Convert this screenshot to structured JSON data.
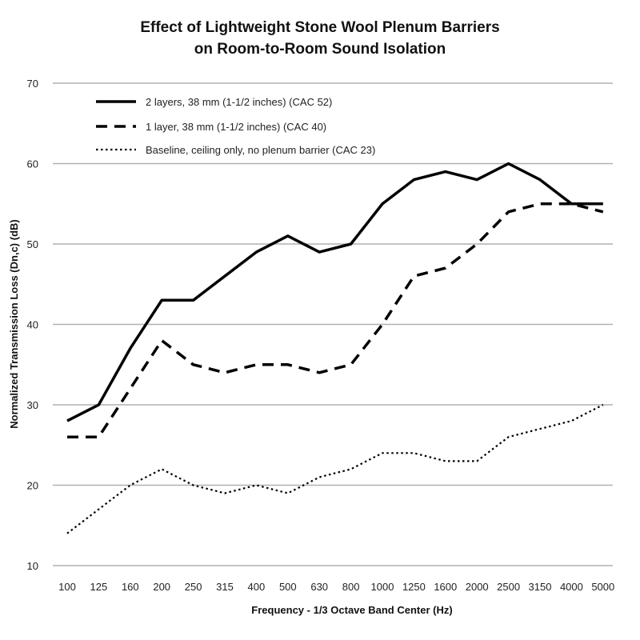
{
  "chart_data": {
    "type": "line",
    "title_line1": "Effect of Lightweight Stone Wool Plenum Barriers",
    "title_line2": "on Room-to-Room Sound Isolation",
    "xlabel": "Frequency - 1/3 Octave Band Center (Hz)",
    "ylabel": "Normalized Transmission Loss (Dn,c) (dB)",
    "ylim": [
      10,
      70
    ],
    "yticks": [
      "10",
      "20",
      "30",
      "40",
      "50",
      "60",
      "70"
    ],
    "grid": "horizontal",
    "legend_position": "top-left",
    "categories": [
      "100",
      "125",
      "160",
      "200",
      "250",
      "315",
      "400",
      "500",
      "630",
      "800",
      "1000",
      "1250",
      "1600",
      "2000",
      "2500",
      "3150",
      "4000",
      "5000"
    ],
    "series": [
      {
        "name": "2 layers, 38 mm (1-1/2 inches) (CAC 52)",
        "style": "solid",
        "values": [
          28,
          30,
          37,
          43,
          43,
          46,
          49,
          51,
          49,
          50,
          55,
          58,
          59,
          58,
          60,
          58,
          55,
          55
        ]
      },
      {
        "name": "1 layer, 38 mm (1-1/2 inches) (CAC 40)",
        "style": "dashed",
        "values": [
          26,
          26,
          32,
          38,
          35,
          34,
          35,
          35,
          34,
          35,
          40,
          46,
          47,
          50,
          54,
          55,
          55,
          54
        ]
      },
      {
        "name": "Baseline, ceiling only, no plenum barrier (CAC 23)",
        "style": "dotted",
        "values": [
          14,
          17,
          20,
          22,
          20,
          19,
          20,
          19,
          21,
          22,
          24,
          24,
          23,
          23,
          26,
          27,
          28,
          30
        ]
      }
    ],
    "colors": {
      "line": "#000000",
      "grid": "#b0b0b0",
      "axis": "#888888"
    }
  }
}
